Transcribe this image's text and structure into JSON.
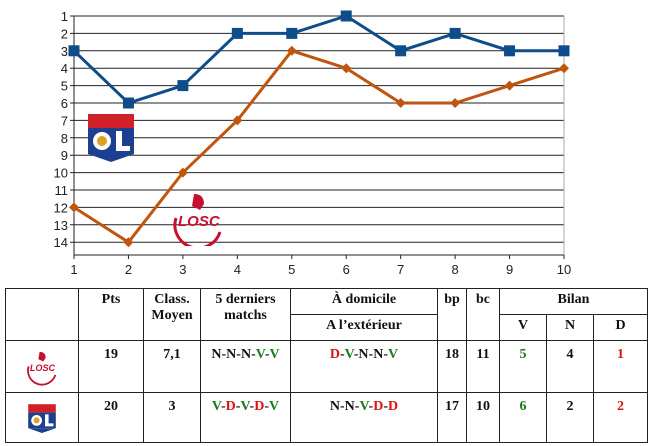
{
  "chart_data": {
    "type": "line",
    "x": [
      1,
      2,
      3,
      4,
      5,
      6,
      7,
      8,
      9,
      10
    ],
    "xlim": [
      1,
      10
    ],
    "ylim": [
      14,
      1
    ],
    "y_inverted": true,
    "y_ticks": [
      1,
      2,
      3,
      4,
      5,
      6,
      7,
      8,
      9,
      10,
      11,
      12,
      13,
      14
    ],
    "grid": true,
    "series": [
      {
        "team_logo": "Olympique Lyonnais",
        "color": "#0f4d8a",
        "marker": "square",
        "values": [
          3,
          6,
          5,
          2,
          2,
          1,
          3,
          2,
          3,
          3
        ]
      },
      {
        "team_logo": "LOSC",
        "color": "#c0550f",
        "marker": "diamond",
        "values": [
          12,
          14,
          10,
          7,
          3,
          4,
          6,
          6,
          5,
          4
        ]
      }
    ]
  },
  "logos": {
    "ol_text": "OLYMPIQUE LYONNAIS",
    "losc_text": "LOSC"
  },
  "table": {
    "headers": {
      "pts": "Pts",
      "class1": "Class.",
      "class2": "Moyen",
      "last5_1": "5 derniers",
      "last5_2": "matchs",
      "home": "À domicile",
      "away": "A l’extérieur",
      "bp": "bp",
      "bc": "bc",
      "bilan": "Bilan",
      "v": "V",
      "n": "N",
      "d": "D"
    },
    "rows": [
      {
        "team": "LOSC",
        "pts": "19",
        "class": "7,1",
        "last5": [
          "N",
          "N",
          "N",
          "V",
          "V"
        ],
        "homeaway": [
          "D",
          "V",
          "N",
          "N",
          "V"
        ],
        "bp": "18",
        "bc": "11",
        "v": "5",
        "n": "4",
        "d": "1"
      },
      {
        "team": "OL",
        "pts": "20",
        "class": "3",
        "last5": [
          "V",
          "D",
          "V",
          "D",
          "V"
        ],
        "homeaway": [
          "N",
          "N",
          "V",
          "D",
          "D"
        ],
        "bp": "17",
        "bc": "10",
        "v": "6",
        "n": "2",
        "d": "2"
      }
    ]
  }
}
